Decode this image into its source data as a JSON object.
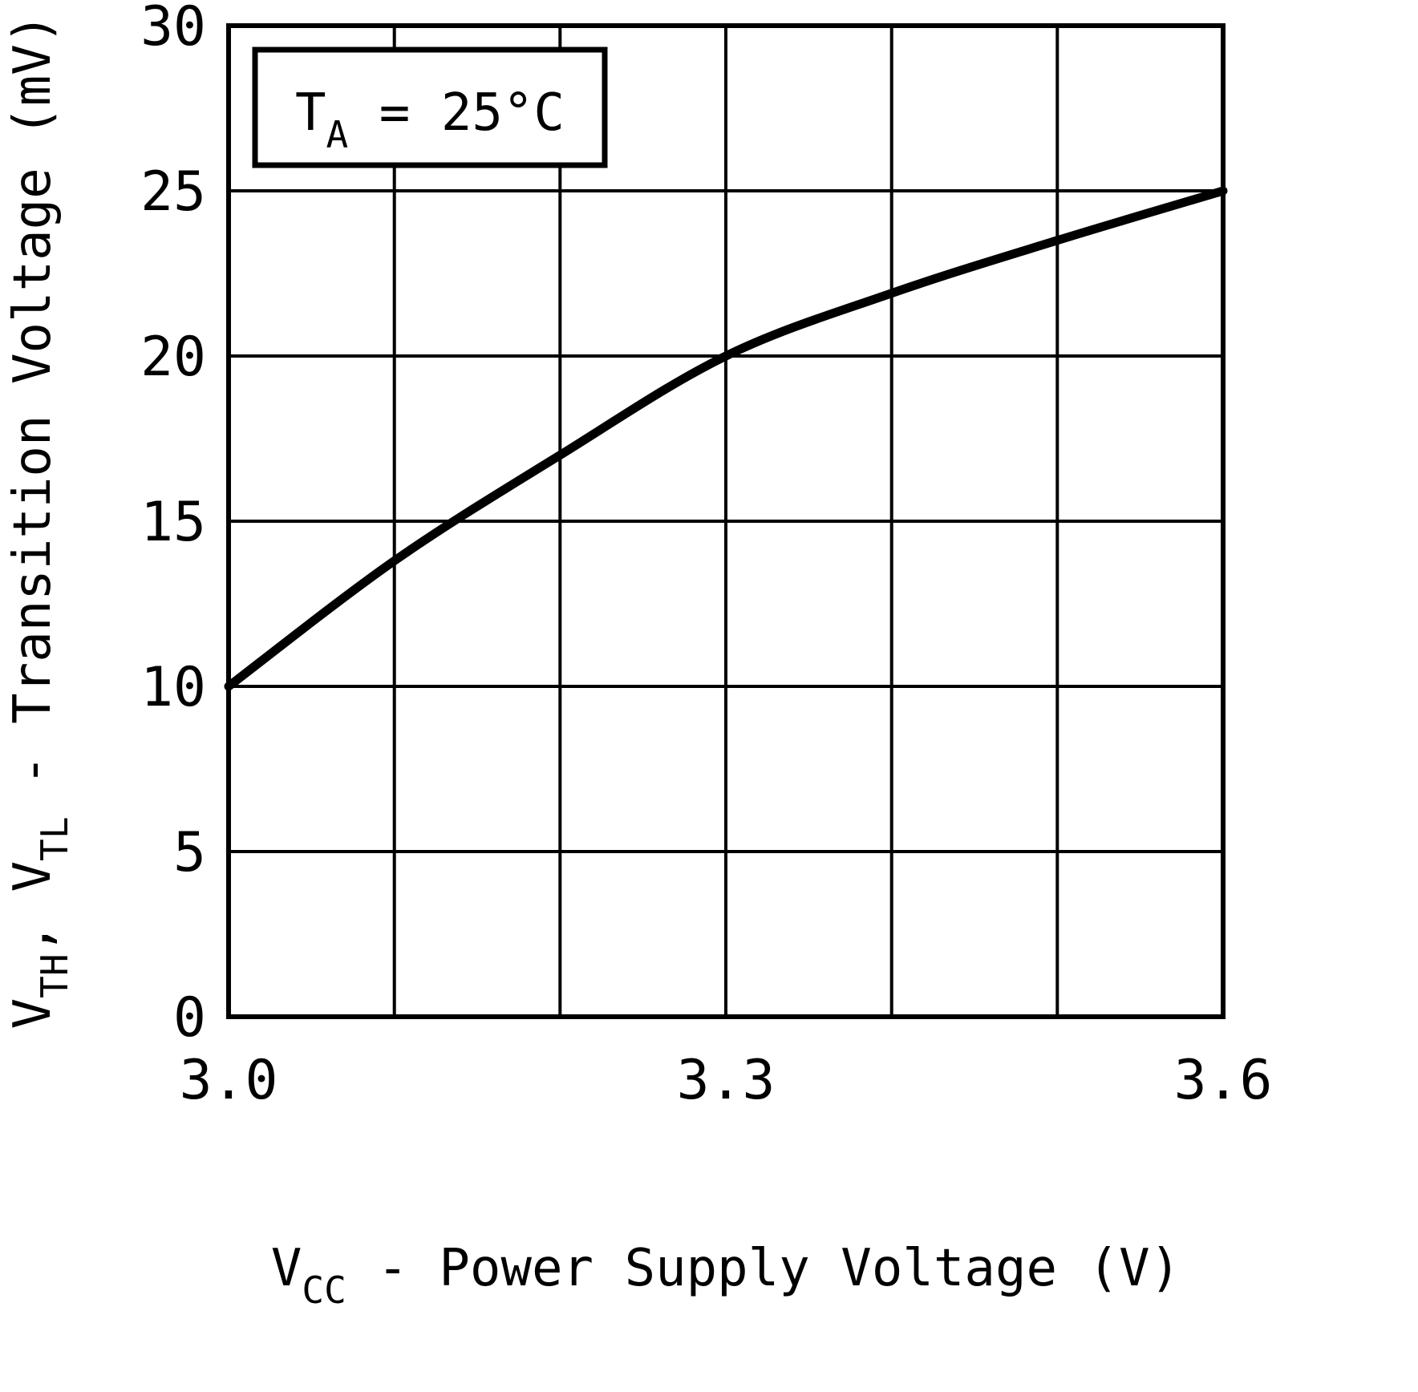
{
  "chart_data": {
    "type": "line",
    "title": "",
    "annotation": "TA = 25°C",
    "annotation_parts": [
      {
        "text": "T"
      },
      {
        "text": "A",
        "sub": true
      },
      {
        "text": " = 25°C"
      }
    ],
    "xlabel": "VCC - Power Supply Voltage (V)",
    "xlabel_parts": [
      {
        "text": "V"
      },
      {
        "text": "CC",
        "sub": true
      },
      {
        "text": " - Power Supply Voltage (V)"
      }
    ],
    "ylabel": "VTH, VTL - Transition Voltage (mV)",
    "ylabel_parts": [
      {
        "text": "V"
      },
      {
        "text": "TH",
        "sub": true
      },
      {
        "text": ", V"
      },
      {
        "text": "TL",
        "sub": true
      },
      {
        "text": " - Transition Voltage (mV)"
      }
    ],
    "series": [
      {
        "name": "VTH, VTL transition voltage",
        "x": [
          3.0,
          3.1,
          3.2,
          3.3,
          3.4,
          3.5,
          3.6
        ],
        "y": [
          10,
          13.8,
          17,
          20,
          21.9,
          23.5,
          25
        ]
      }
    ],
    "xlim": [
      3.0,
      3.6
    ],
    "ylim": [
      0,
      30
    ],
    "x_grid_step": 0.1,
    "y_grid_step": 5,
    "xticks": [
      {
        "value": 3.0,
        "label": "3.0"
      },
      {
        "value": 3.3,
        "label": "3.3"
      },
      {
        "value": 3.6,
        "label": "3.6"
      }
    ],
    "yticks": [
      {
        "value": 0,
        "label": "0"
      },
      {
        "value": 5,
        "label": "5"
      },
      {
        "value": 10,
        "label": "10"
      },
      {
        "value": 15,
        "label": "15"
      },
      {
        "value": 20,
        "label": "20"
      },
      {
        "value": 25,
        "label": "25"
      },
      {
        "value": 30,
        "label": "30"
      }
    ],
    "grid": true,
    "legend": "none",
    "colors": {
      "line": "#000000",
      "grid": "#000000",
      "frame": "#000000",
      "text": "#000000",
      "background": "#ffffff"
    }
  }
}
